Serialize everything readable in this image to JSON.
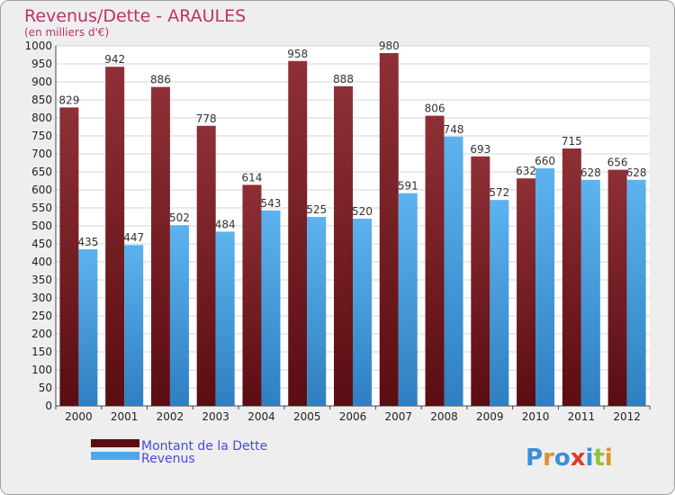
{
  "chart_data": {
    "type": "bar",
    "title": "Revenus/Dette - ARAULES",
    "subtitle": "(en milliers d'€)",
    "categories": [
      "2000",
      "2001",
      "2002",
      "2003",
      "2004",
      "2005",
      "2006",
      "2007",
      "2008",
      "2009",
      "2010",
      "2011",
      "2012"
    ],
    "series": [
      {
        "name": "Montant de la Dette",
        "color": "#7a1e24",
        "values": [
          829,
          942,
          886,
          778,
          614,
          958,
          888,
          980,
          806,
          693,
          632,
          715,
          656
        ]
      },
      {
        "name": "Revenus",
        "color": "#4fa8e6",
        "values": [
          435,
          447,
          502,
          484,
          543,
          525,
          520,
          591,
          748,
          572,
          660,
          628,
          628
        ]
      }
    ],
    "yticks": [
      0,
      50,
      100,
      150,
      200,
      250,
      300,
      350,
      400,
      450,
      500,
      550,
      600,
      650,
      700,
      750,
      800,
      850,
      900,
      950,
      1000
    ],
    "ylim": [
      0,
      1000
    ],
    "grid": true,
    "legend_position": "bottom-left"
  },
  "brand": {
    "logo_text": "Proxiti"
  }
}
